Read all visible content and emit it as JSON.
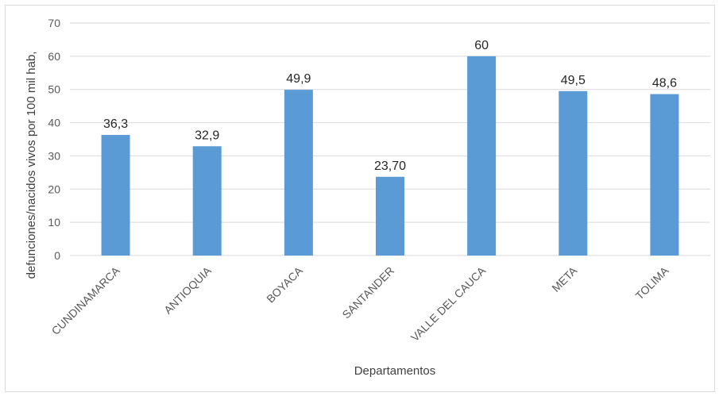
{
  "chart_data": {
    "type": "bar",
    "categories": [
      "CUNDINAMARCA",
      "ANTIOQUIA",
      "BOYACA",
      "SANTANDER",
      "VALLE DEL CAUCA",
      "META",
      "TOLIMA"
    ],
    "values": [
      36.3,
      32.9,
      49.9,
      23.7,
      60,
      49.5,
      48.6
    ],
    "data_labels": [
      "36,3",
      "32,9",
      "49,9",
      "23,70",
      "60",
      "49,5",
      "48,6"
    ],
    "title": "",
    "xlabel": "Departamentos",
    "ylabel": "defunciones/nacidos vivos por 100 mil hab,",
    "ylim": [
      0,
      70
    ],
    "yticks": [
      0,
      10,
      20,
      30,
      40,
      50,
      60,
      70
    ],
    "grid": true,
    "legend": "none",
    "bar_color": "#5b9bd5"
  }
}
